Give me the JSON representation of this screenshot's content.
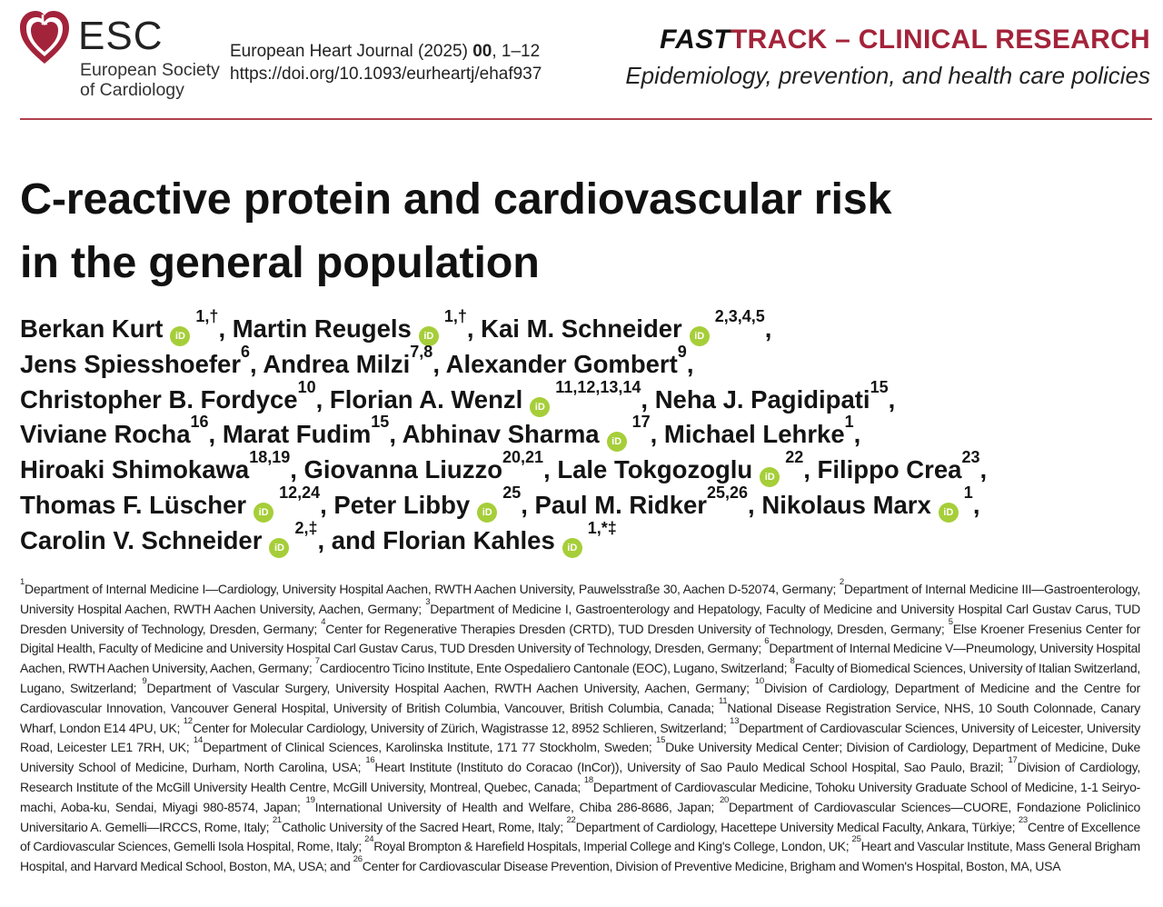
{
  "header": {
    "logo_text": "ESC",
    "society_name": "European Society of Cardiology",
    "journal_citation_prefix": "European Heart Journal (2025) ",
    "journal_volume": "00",
    "journal_pages": ", 1–12",
    "doi": "https://doi.org/10.1093/eurheartj/ehaf937",
    "section_fast": "FAST",
    "section_rest": "TRACK – CLINICAL RESEARCH",
    "subsection": "Epidemiology, prevention, and health care policies",
    "colors": {
      "brand_red": "#a3233a",
      "orcid_green": "#a6ce39"
    }
  },
  "article": {
    "title_lines": [
      "C-reactive protein and cardiovascular risk",
      "in the general population"
    ],
    "author_lines": [
      [
        {
          "name": "Berkan Kurt",
          "orcid": true,
          "sup": "1,†",
          "sep": ", "
        },
        {
          "name": "Martin Reugels",
          "orcid": true,
          "sup": "1,†",
          "sep": ", "
        },
        {
          "name": "Kai M. Schneider",
          "orcid": true,
          "sup": "2,3,4,5",
          "sep": ","
        }
      ],
      [
        {
          "name": "Jens Spiesshoefer",
          "orcid": false,
          "sup": "6",
          "sep": ", "
        },
        {
          "name": "Andrea Milzi",
          "orcid": false,
          "sup": "7,8",
          "sep": ", "
        },
        {
          "name": "Alexander Gombert",
          "orcid": false,
          "sup": "9",
          "sep": ","
        }
      ],
      [
        {
          "name": "Christopher B. Fordyce",
          "orcid": false,
          "sup": "10",
          "sep": ", "
        },
        {
          "name": "Florian A. Wenzl",
          "orcid": true,
          "sup": "11,12,13,14",
          "sep": ", "
        },
        {
          "name": "Neha J. Pagidipati",
          "orcid": false,
          "sup": "15",
          "sep": ","
        }
      ],
      [
        {
          "name": "Viviane Rocha",
          "orcid": false,
          "sup": "16",
          "sep": ", "
        },
        {
          "name": "Marat Fudim",
          "orcid": false,
          "sup": "15",
          "sep": ", "
        },
        {
          "name": "Abhinav Sharma",
          "orcid": true,
          "sup": "17",
          "sep": ", "
        },
        {
          "name": "Michael Lehrke",
          "orcid": false,
          "sup": "1",
          "sep": ","
        }
      ],
      [
        {
          "name": "Hiroaki Shimokawa",
          "orcid": false,
          "sup": "18,19",
          "sep": ", "
        },
        {
          "name": "Giovanna Liuzzo",
          "orcid": false,
          "sup": "20,21",
          "sep": ", "
        },
        {
          "name": "Lale Tokgozoglu",
          "orcid": true,
          "sup": "22",
          "sep": ", "
        },
        {
          "name": "Filippo Crea",
          "orcid": false,
          "sup": "23",
          "sep": ","
        }
      ],
      [
        {
          "name": "Thomas F. Lüscher",
          "orcid": true,
          "sup": "12,24",
          "sep": ", "
        },
        {
          "name": "Peter Libby",
          "orcid": true,
          "sup": "25",
          "sep": ", "
        },
        {
          "name": "Paul M. Ridker",
          "orcid": false,
          "sup": "25,26",
          "sep": ", "
        },
        {
          "name": "Nikolaus Marx",
          "orcid": true,
          "sup": "1",
          "sep": ","
        }
      ],
      [
        {
          "name": "Carolin V. Schneider",
          "orcid": true,
          "sup": "2,‡",
          "sep": ", and "
        },
        {
          "name": "Florian Kahles",
          "orcid": true,
          "sup": "1,*‡",
          "sep": ""
        }
      ]
    ],
    "orcid_label": "iD",
    "affiliations": [
      {
        "num": "1",
        "text": "Department of Internal Medicine I—Cardiology, University Hospital Aachen, RWTH Aachen University, Pauwelsstraße 30, Aachen D-52074, Germany; "
      },
      {
        "num": "2",
        "text": "Department of Internal Medicine III—Gastroenterology, University Hospital Aachen, RWTH Aachen University, Aachen, Germany; "
      },
      {
        "num": "3",
        "text": "Department of Medicine I, Gastroenterology and Hepatology, Faculty of Medicine and University Hospital Carl Gustav Carus, TUD Dresden University of Technology, Dresden, Germany; "
      },
      {
        "num": "4",
        "text": "Center for Regenerative Therapies Dresden (CRTD), TUD Dresden University of Technology, Dresden, Germany; "
      },
      {
        "num": "5",
        "text": "Else Kroener Fresenius Center for Digital Health, Faculty of Medicine and University Hospital Carl Gustav Carus, TUD Dresden University of Technology, Dresden, Germany; "
      },
      {
        "num": "6",
        "text": "Department of Internal Medicine V—Pneumology, University Hospital Aachen, RWTH Aachen University, Aachen, Germany; "
      },
      {
        "num": "7",
        "text": "Cardiocentro Ticino Institute, Ente Ospedaliero Cantonale (EOC), Lugano, Switzerland; "
      },
      {
        "num": "8",
        "text": "Faculty of Biomedical Sciences, University of Italian Switzerland, Lugano, Switzerland; "
      },
      {
        "num": "9",
        "text": "Department of Vascular Surgery, University Hospital Aachen, RWTH Aachen University, Aachen, Germany; "
      },
      {
        "num": "10",
        "text": "Division of Cardiology, Department of Medicine and the Centre for Cardiovascular Innovation, Vancouver General Hospital, University of British Columbia, Vancouver, British Columbia, Canada; "
      },
      {
        "num": "11",
        "text": "National Disease Registration Service, NHS, 10 South Colonnade, Canary Wharf, London E14 4PU, UK; "
      },
      {
        "num": "12",
        "text": "Center for Molecular Cardiology, University of Zürich, Wagistrasse 12, 8952 Schlieren, Switzerland; "
      },
      {
        "num": "13",
        "text": "Department of Cardiovascular Sciences, University of Leicester, University Road, Leicester LE1 7RH, UK; "
      },
      {
        "num": "14",
        "text": "Department of Clinical Sciences, Karolinska Institute, 171 77 Stockholm, Sweden; "
      },
      {
        "num": "15",
        "text": "Duke University Medical Center; Division of Cardiology, Department of Medicine, Duke University School of Medicine, Durham, North Carolina, USA; "
      },
      {
        "num": "16",
        "text": "Heart Institute (Instituto do Coracao (InCor)), University of Sao Paulo Medical School Hospital, Sao Paulo, Brazil; "
      },
      {
        "num": "17",
        "text": "Division of Cardiology, Research Institute of the McGill University Health Centre, McGill University, Montreal, Quebec, Canada; "
      },
      {
        "num": "18",
        "text": "Department of Cardiovascular Medicine, Tohoku University Graduate School of Medicine, 1-1 Seiryo-machi, Aoba-ku, Sendai, Miyagi 980-8574, Japan; "
      },
      {
        "num": "19",
        "text": "International University of Health and Welfare, Chiba 286-8686, Japan; "
      },
      {
        "num": "20",
        "text": "Department of Cardiovascular Sciences—CUORE, Fondazione Policlinico Universitario A. Gemelli—IRCCS, Rome, Italy; "
      },
      {
        "num": "21",
        "text": "Catholic University of the Sacred Heart, Rome, Italy; "
      },
      {
        "num": "22",
        "text": "Department of Cardiology, Hacettepe University Medical Faculty, Ankara, Türkiye; "
      },
      {
        "num": "23",
        "text": "Centre of Excellence of Cardiovascular Sciences, Gemelli Isola Hospital, Rome, Italy; "
      },
      {
        "num": "24",
        "text": "Royal Brompton & Harefield Hospitals, Imperial College and King's College, London, UK; "
      },
      {
        "num": "25",
        "text": "Heart and Vascular Institute, Mass General Brigham Hospital, and Harvard Medical School, Boston, MA, USA; and "
      },
      {
        "num": "26",
        "text": "Center for Cardiovascular Disease Prevention, Division of Preventive Medicine, Brigham and Women's Hospital, Boston, MA, USA"
      }
    ]
  }
}
